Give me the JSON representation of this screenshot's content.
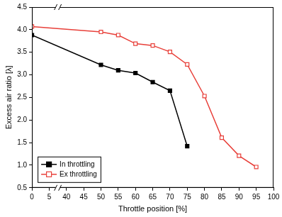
{
  "chart_data": {
    "type": "line",
    "x_label": "Throttle position [%]",
    "y_label": "Excess air ratio [λ]",
    "xlim": [
      0,
      100
    ],
    "xticks": [
      0,
      5,
      40,
      45,
      50,
      55,
      60,
      65,
      70,
      75,
      80,
      85,
      90,
      95,
      100
    ],
    "ylim": [
      0.5,
      4.5
    ],
    "yticks": [
      0.5,
      {
        "value": 1,
        "label": "1.0"
      },
      1.5,
      {
        "value": 2,
        "label": "2.0"
      },
      2.5,
      {
        "value": 3,
        "label": "3.0"
      },
      3.5,
      {
        "value": 4,
        "label": "4.0"
      },
      4.5
    ],
    "grid": false,
    "legend": "lower left",
    "series": [
      {
        "name": "In throttling",
        "color": "#000000",
        "marker": "square",
        "x": [
          0,
          50,
          55,
          60,
          65,
          70,
          75
        ],
        "values": [
          3.88,
          3.22,
          3.1,
          3.04,
          2.84,
          2.65,
          1.42
        ]
      },
      {
        "name": "Ex throttling",
        "color": "#e8403a",
        "marker": "open-square",
        "x": [
          0,
          50,
          55,
          60,
          65,
          70,
          75,
          80,
          85,
          90,
          95
        ],
        "values": [
          4.07,
          3.95,
          3.88,
          3.69,
          3.65,
          3.51,
          3.23,
          2.53,
          1.61,
          1.21,
          0.96
        ]
      }
    ]
  }
}
